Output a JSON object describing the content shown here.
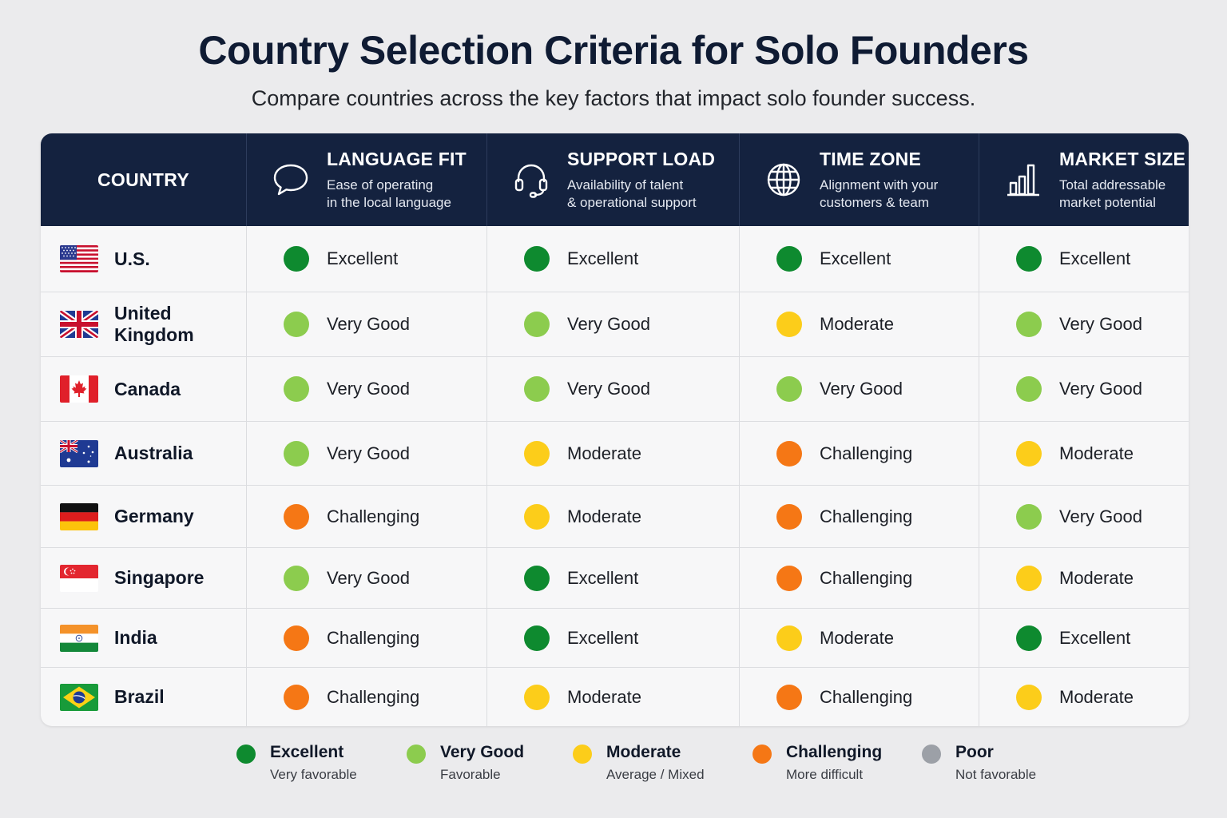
{
  "title": "Country Selection Criteria for Solo Founders",
  "subtitle": "Compare countries across the key factors that impact solo founder success.",
  "colors": {
    "Excellent": "#0e8a2f",
    "Very Good": "#8ccc4e",
    "Moderate": "#fccd1a",
    "Challenging": "#f57715",
    "Poor": "#9ca0a7",
    "header_bg": "#14223f"
  },
  "table": {
    "country_header": "COUNTRY",
    "columns": [
      {
        "title": "LANGUAGE FIT",
        "desc1": "Ease of operating",
        "desc2": "in the local language",
        "icon": "speech-bubble-icon"
      },
      {
        "title": "SUPPORT LOAD",
        "desc1": "Availability of talent",
        "desc2": "& operational support",
        "icon": "headset-icon"
      },
      {
        "title": "TIME ZONE",
        "desc1": "Alignment with your",
        "desc2": "customers & team",
        "icon": "globe-icon"
      },
      {
        "title": "MARKET SIZE",
        "desc1": "Total addressable",
        "desc2": "market potential",
        "icon": "bar-chart-icon"
      }
    ],
    "rows": [
      {
        "country": "U.S.",
        "flag": "us-flag-icon",
        "ratings": [
          "Excellent",
          "Excellent",
          "Excellent",
          "Excellent"
        ]
      },
      {
        "country": "United Kingdom",
        "flag": "uk-flag-icon",
        "ratings": [
          "Very Good",
          "Very Good",
          "Moderate",
          "Very Good"
        ]
      },
      {
        "country": "Canada",
        "flag": "canada-flag-icon",
        "ratings": [
          "Very Good",
          "Very Good",
          "Very Good",
          "Very Good"
        ]
      },
      {
        "country": "Australia",
        "flag": "australia-flag-icon",
        "ratings": [
          "Very Good",
          "Moderate",
          "Challenging",
          "Moderate"
        ]
      },
      {
        "country": "Germany",
        "flag": "germany-flag-icon",
        "ratings": [
          "Challenging",
          "Moderate",
          "Challenging",
          "Very Good"
        ]
      },
      {
        "country": "Singapore",
        "flag": "singapore-flag-icon",
        "ratings": [
          "Very Good",
          "Excellent",
          "Challenging",
          "Moderate"
        ]
      },
      {
        "country": "India",
        "flag": "india-flag-icon",
        "ratings": [
          "Challenging",
          "Excellent",
          "Moderate",
          "Excellent"
        ]
      },
      {
        "country": "Brazil",
        "flag": "brazil-flag-icon",
        "ratings": [
          "Challenging",
          "Moderate",
          "Challenging",
          "Moderate"
        ]
      }
    ]
  },
  "legend": [
    {
      "label": "Excellent",
      "desc": "Very favorable"
    },
    {
      "label": "Very Good",
      "desc": "Favorable"
    },
    {
      "label": "Moderate",
      "desc": "Average / Mixed"
    },
    {
      "label": "Challenging",
      "desc": "More difficult"
    },
    {
      "label": "Poor",
      "desc": "Not favorable"
    }
  ]
}
